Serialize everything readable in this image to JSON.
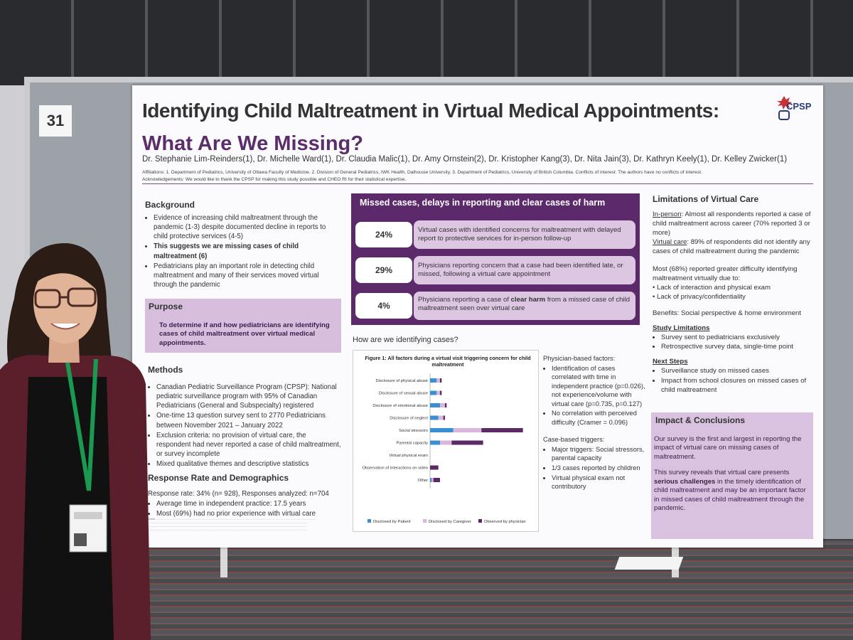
{
  "booth_number": "31",
  "poster": {
    "title": "Identifying Child Maltreatment in Virtual Medical Appointments:",
    "subtitle": "What Are We Missing?",
    "logo_text": "CPSP",
    "authors": "Dr. Stephanie Lim-Reinders(1), Dr. Michelle Ward(1), Dr. Claudia Malic(1), Dr. Amy Ornstein(2), Dr. Kristopher Kang(3), Dr. Nita Jain(3), Dr. Kathryn Keely(1), Dr. Kelley Zwicker(1)",
    "affiliations": "Affiliations: 1. Department of Pediatrics, University of Ottawa Faculty of Medicine. 2. Division of General Pediatrics, IWK Health, Dalhousie University. 3. Department of Pediatrics, University of British Columbia. Conflicts of interest: The authors have no conflicts of interest.",
    "acknowledgements": "Acknowledgements: We would like to thank the CPSP for making this study possible and CHEO RI for their statistical expertise.",
    "background": {
      "heading": "Background",
      "items": [
        "Evidence of increasing child maltreatment through the pandemic (1-3) despite documented decline in reports to child protective services (4-5)",
        "This suggests we are missing cases of child maltreatment (6)",
        "Pediatricians play an important role in detecting child maltreatment and many of their services moved virtual through the pandemic"
      ]
    },
    "purpose": {
      "heading": "Purpose",
      "text": "To determine if and how pediatricians are identifying cases of child maltreatment over virtual medical appointments."
    },
    "methods": {
      "heading": "Methods",
      "items": [
        "Canadian Pediatric Surveillance Program (CPSP): National pediatric surveillance program with 95% of Canadian Pediatricians (General and Subspecialty) registered",
        "One-time 13 question survey sent to 2770 Pediatricians between November 2021 – January 2022",
        "Exclusion criteria: no provision of virtual care, the respondent had never reported a case of child maltreatment, or survey incomplete",
        "Mixed qualitative themes and descriptive statistics"
      ]
    },
    "response": {
      "heading": "Response Rate and Demographics",
      "line": "Response rate: 34% (n= 928), Responses analyzed: n=704",
      "items": [
        "Average time in independent practice: 17.5 years",
        "Most (69%) had no prior experience with virtual care"
      ]
    },
    "missed": {
      "heading": "Missed cases, delays in reporting and clear cases of harm",
      "stats": [
        {
          "value": "24%",
          "text": "Virtual cases with identified concerns for maltreatment with delayed report to protective services for in-person follow-up"
        },
        {
          "value": "29%",
          "text": "Physicians reporting concern that a case had been identified late, or missed, following a virtual care appointment"
        },
        {
          "value": "4%",
          "text_before": "Physicians reporting a case of ",
          "text_bold": "clear harm",
          "text_after": " from a missed case of child maltreatment seen over virtual care"
        }
      ]
    },
    "how_heading": "How are we identifying cases?",
    "physician_factors": {
      "heading": "Physician-based factors:",
      "items": [
        "Identification of cases correlated with time in independent practice (p=0.026), not experience/volume with virtual care (p=0.735, p=0.127)",
        "No correlation with perceived difficulty (Cramer = 0.096)"
      ]
    },
    "case_triggers": {
      "heading": "Case-based triggers:",
      "items": [
        "Major triggers: Social stressors, parental capacity",
        "1/3 cases reported by children",
        "Virtual physical exam not contributory"
      ]
    },
    "limitations": {
      "heading": "Limitations of Virtual Care",
      "inperson_label": "In-person",
      "inperson_text": ": Almost all respondents reported a case of child maltreatment across career (70% reported 3 or more)",
      "virtual_label": "Virtual care",
      "virtual_text": ": 89% of respondents did not identify any cases of child maltreatment during the pandemic",
      "difficulty": "Most (68%) reported greater difficulty identifying maltreatment virtually due to:",
      "difficulty_items": [
        "Lack of interaction and physical exam",
        "Lack of privacy/confidentiality"
      ],
      "benefits": "Benefits: Social perspective & home environment"
    },
    "study_limitations": {
      "heading": "Study Limitations",
      "items": [
        "Survey sent to pediatricians exclusively",
        "Retrospective survey data, single-time point"
      ]
    },
    "next_steps": {
      "heading": "Next Steps",
      "items": [
        "Surveillance study on missed cases",
        "Impact from school closures on missed cases of child maltreatment"
      ]
    },
    "impact": {
      "heading": "Impact & Conclusions",
      "p1": "Our survey is the first and largest in reporting the impact of virtual care on missing cases of maltreatment.",
      "p2_before": "This survey reveals that virtual care presents ",
      "p2_bold": "serious challenges",
      "p2_after": " in the timely identification of child maltreatment and may be an important factor in missed cases of child maltreatment through the pandemic."
    }
  },
  "chart_data": {
    "type": "bar",
    "orientation": "horizontal",
    "stacked": true,
    "title": "Figure 1: All factors during a virtual visit triggering concern for child maltreatment",
    "categories": [
      "Disclosure of physical abuse",
      "Disclosure of sexual abuse",
      "Disclosure of emotional abuse",
      "Disclosure of neglect",
      "Social stressors",
      "Parental capacity",
      "Virtual physical exam",
      "Observation of interactions on video",
      "Other"
    ],
    "series": [
      {
        "name": "Disclosed by Patient",
        "values": [
          4,
          4,
          6,
          5,
          14,
          6,
          0,
          0,
          1
        ],
        "color": "#3a8fd0"
      },
      {
        "name": "Disclosed by Caregiver",
        "values": [
          2,
          2,
          3,
          3,
          17,
          7,
          0,
          0,
          1
        ],
        "color": "#d8b7d8"
      },
      {
        "name": "Observed by physician",
        "values": [
          1,
          1,
          1,
          1,
          25,
          19,
          0,
          5,
          4
        ],
        "color": "#5b2a66"
      }
    ],
    "xmax": 60,
    "legend": "bottom"
  }
}
